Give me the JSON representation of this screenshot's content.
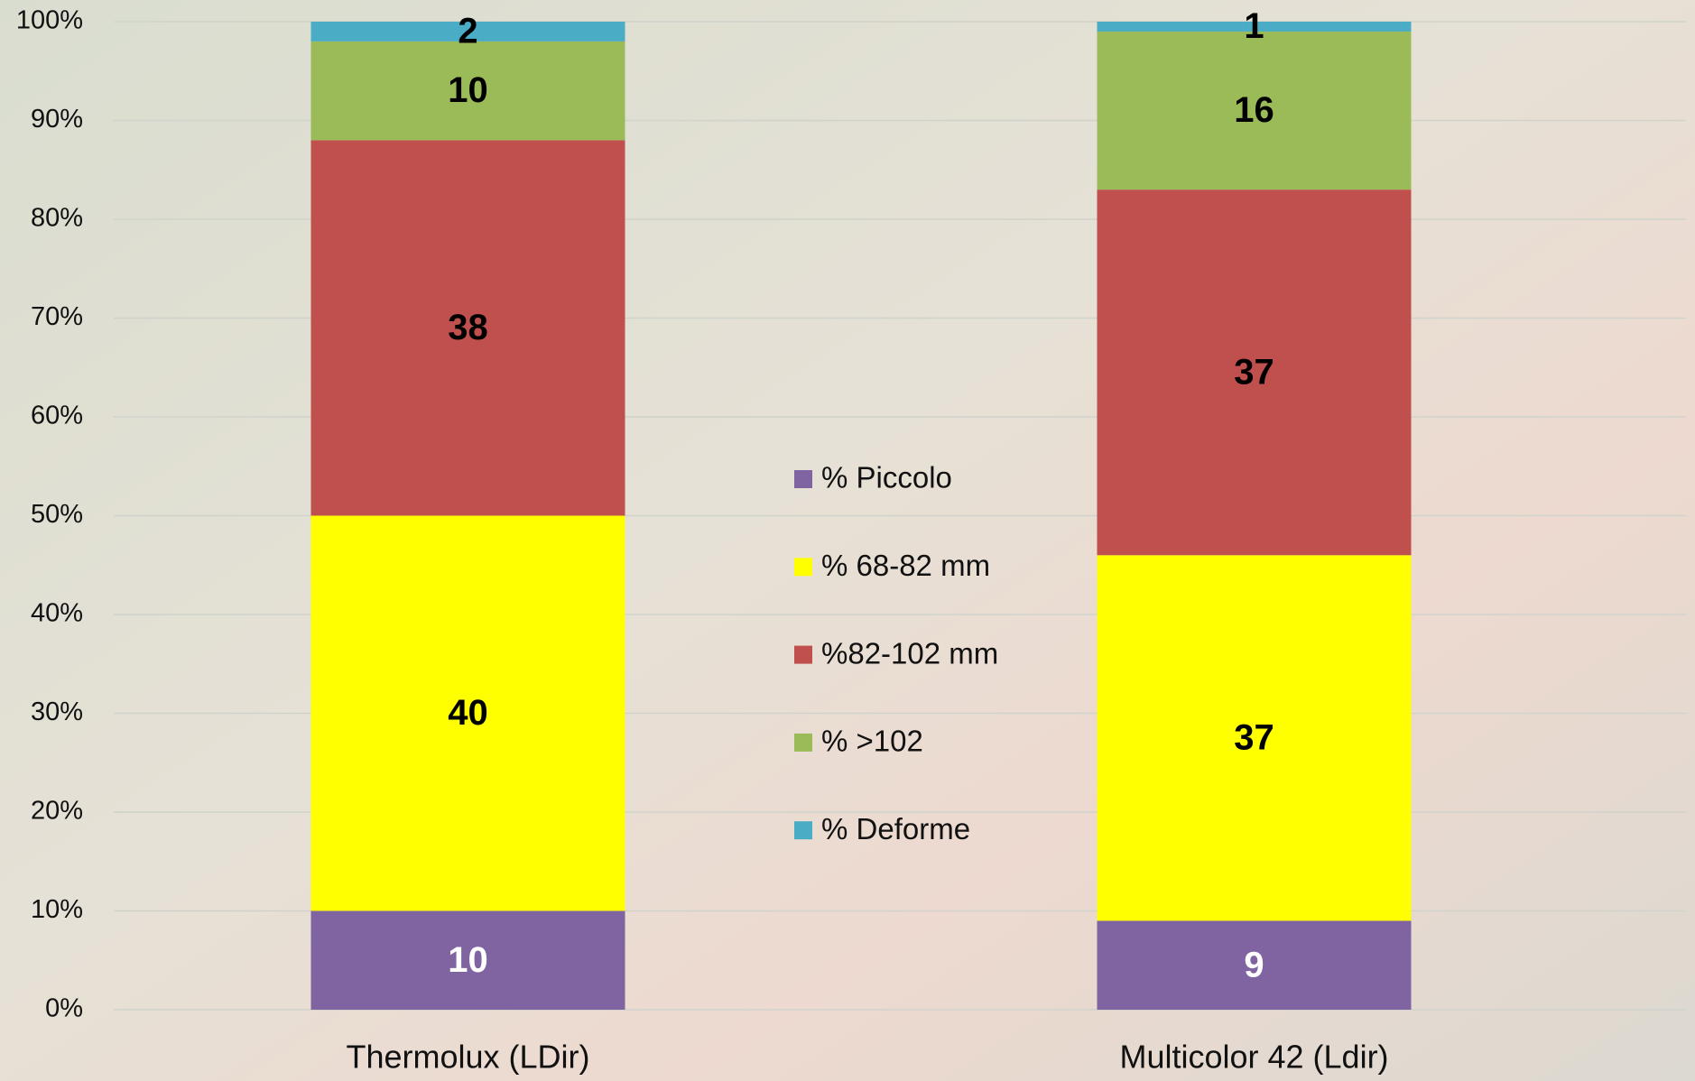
{
  "chart_data": {
    "type": "stacked_bar_percent",
    "categories": [
      "Thermolux (LDir)",
      "Multicolor 42 (Ldir)"
    ],
    "series": [
      {
        "name": "% Piccolo",
        "color": "#8064a2",
        "label_color": "#ffffff",
        "values": [
          10,
          9
        ]
      },
      {
        "name": "% 68-82 mm",
        "color": "#ffff00",
        "label_color": "#000000",
        "values": [
          40,
          37
        ]
      },
      {
        "name": "%82-102 mm",
        "color": "#c0504d",
        "label_color": "#000000",
        "values": [
          38,
          37
        ]
      },
      {
        "name": "% >102",
        "color": "#9bbb59",
        "label_color": "#000000",
        "values": [
          10,
          16
        ]
      },
      {
        "name": "% Deforme",
        "color": "#4bacc6",
        "label_color": "#000000",
        "values": [
          2,
          1
        ]
      }
    ],
    "ylim": [
      0,
      100
    ],
    "yticks": [
      {
        "value": 0,
        "label": "0%"
      },
      {
        "value": 10,
        "label": "10%"
      },
      {
        "value": 20,
        "label": "20%"
      },
      {
        "value": 30,
        "label": "30%"
      },
      {
        "value": 40,
        "label": "40%"
      },
      {
        "value": 50,
        "label": "50%"
      },
      {
        "value": 60,
        "label": "60%"
      },
      {
        "value": 70,
        "label": "70%"
      },
      {
        "value": 80,
        "label": "80%"
      },
      {
        "value": 90,
        "label": "90%"
      },
      {
        "value": 100,
        "label": "100%"
      }
    ],
    "grid": true,
    "legend": "center"
  }
}
